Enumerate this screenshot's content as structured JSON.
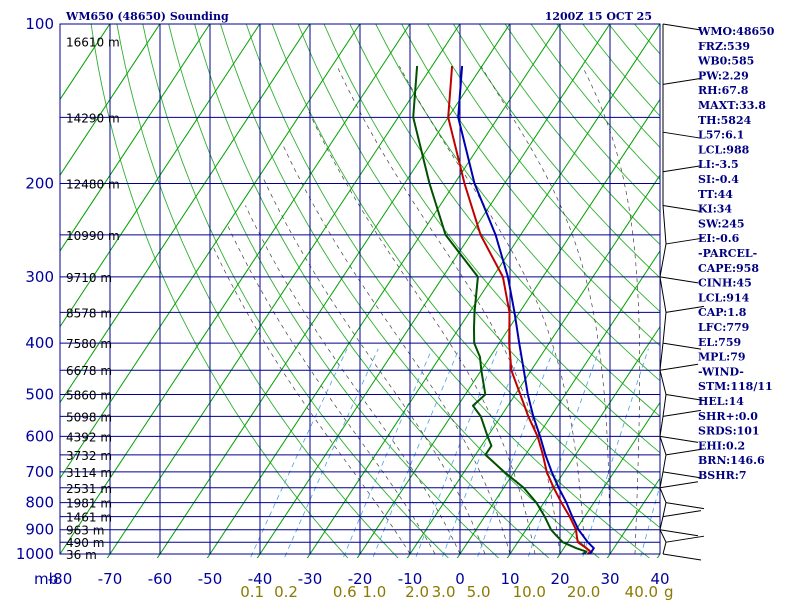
{
  "header": {
    "title": "WM650 (48650) Sounding",
    "datetime": "1200Z 15 OCT 25"
  },
  "chart_data": {
    "type": "skew-t",
    "pressure_axis": {
      "range": [
        1000,
        100
      ],
      "ticks": [
        100,
        200,
        300,
        400,
        500,
        600,
        700,
        800,
        900,
        1000
      ],
      "unit_label": "mb"
    },
    "temperature_axis": {
      "range": [
        -80,
        40
      ],
      "ticks": [
        -80,
        -70,
        -60,
        -50,
        -40,
        -30,
        -20,
        -10,
        0,
        10,
        20,
        30,
        40
      ]
    },
    "mixing_ratio_axis": {
      "ticks": [
        "0.1",
        "0.2",
        "0.6",
        "1.0",
        "2.0",
        "3.0",
        "5.0",
        "10.0",
        "20.0",
        "40.0"
      ],
      "unit_label": "g"
    },
    "height_labels": [
      {
        "p": 108,
        "label": "16610 m"
      },
      {
        "p": 150,
        "label": "14290 m"
      },
      {
        "p": 200,
        "label": "12480 m"
      },
      {
        "p": 250,
        "label": "10990 m"
      },
      {
        "p": 300,
        "label": "9710 m"
      },
      {
        "p": 350,
        "label": "8578 m"
      },
      {
        "p": 400,
        "label": "7580 m"
      },
      {
        "p": 450,
        "label": "6678 m"
      },
      {
        "p": 500,
        "label": "5860 m"
      },
      {
        "p": 550,
        "label": "5098 m"
      },
      {
        "p": 600,
        "label": "4392 m"
      },
      {
        "p": 650,
        "label": "3732 m"
      },
      {
        "p": 700,
        "label": "3114 m"
      },
      {
        "p": 750,
        "label": "2531 m"
      },
      {
        "p": 800,
        "label": "1981 m"
      },
      {
        "p": 850,
        "label": "1461 m"
      },
      {
        "p": 900,
        "label": "963 m"
      },
      {
        "p": 950,
        "label": "490 m"
      },
      {
        "p": 1000,
        "label": "36 m"
      }
    ],
    "series": [
      {
        "name": "Temperature",
        "color": "#c00000",
        "points": [
          [
            1000,
            25.5
          ],
          [
            990,
            25.8
          ],
          [
            975,
            24.5
          ],
          [
            950,
            22
          ],
          [
            925,
            21
          ],
          [
            900,
            20
          ],
          [
            850,
            17
          ],
          [
            800,
            13.5
          ],
          [
            750,
            10
          ],
          [
            700,
            6.5
          ],
          [
            650,
            3.5
          ],
          [
            600,
            0
          ],
          [
            550,
            -4.5
          ],
          [
            500,
            -9
          ],
          [
            450,
            -14
          ],
          [
            400,
            -18
          ],
          [
            350,
            -22
          ],
          [
            300,
            -28
          ],
          [
            250,
            -38
          ],
          [
            200,
            -48
          ],
          [
            150,
            -60
          ],
          [
            120,
            -66
          ]
        ]
      },
      {
        "name": "Dewpoint",
        "color": "#005000",
        "points": [
          [
            1000,
            24.5
          ],
          [
            990,
            25
          ],
          [
            975,
            22.5
          ],
          [
            950,
            19
          ],
          [
            925,
            17
          ],
          [
            900,
            15
          ],
          [
            850,
            12
          ],
          [
            800,
            8.5
          ],
          [
            750,
            4
          ],
          [
            700,
            -2
          ],
          [
            650,
            -8
          ],
          [
            625,
            -8
          ],
          [
            600,
            -10
          ],
          [
            550,
            -14
          ],
          [
            525,
            -17
          ],
          [
            500,
            -16
          ],
          [
            450,
            -20
          ],
          [
            425,
            -22
          ],
          [
            400,
            -25
          ],
          [
            375,
            -27
          ],
          [
            350,
            -29
          ],
          [
            300,
            -33
          ],
          [
            250,
            -45
          ],
          [
            200,
            -55
          ],
          [
            150,
            -67
          ],
          [
            120,
            -73
          ]
        ]
      },
      {
        "name": "Parcel",
        "color": "#0000b0",
        "points": [
          [
            1000,
            26
          ],
          [
            975,
            26
          ],
          [
            950,
            24
          ],
          [
            914,
            21.5
          ],
          [
            900,
            20.5
          ],
          [
            850,
            17.5
          ],
          [
            800,
            14.5
          ],
          [
            750,
            11
          ],
          [
            700,
            7.5
          ],
          [
            650,
            4
          ],
          [
            600,
            0.5
          ],
          [
            550,
            -3.5
          ],
          [
            500,
            -7.5
          ],
          [
            450,
            -11.5
          ],
          [
            400,
            -16
          ],
          [
            350,
            -21
          ],
          [
            300,
            -27
          ],
          [
            250,
            -35
          ],
          [
            200,
            -46
          ],
          [
            150,
            -58
          ],
          [
            120,
            -64
          ]
        ]
      }
    ],
    "wind_barbs_p": [
      100,
      130,
      160,
      190,
      220,
      260,
      300,
      350,
      400,
      450,
      500,
      550,
      600,
      650,
      700,
      750,
      800,
      850,
      900,
      950,
      1000
    ],
    "indices": [
      "WMO:48650",
      "FRZ:539",
      "WB0:585",
      "PW:2.29",
      "RH:67.8",
      "MAXT:33.8",
      "TH:5824",
      "L57:6.1",
      "LCL:988",
      "LI:-3.5",
      "SI:-0.4",
      "TT:44",
      "KI:34",
      "SW:245",
      "EI:-0.6",
      "-PARCEL-",
      "CAPE:958",
      "CINH:45",
      "LCL:914",
      "CAP:1.8",
      "LFC:779",
      "EL:759",
      "MPL:79",
      "-WIND-",
      "STM:118/11",
      "HEL:14",
      "SHR+:0.0",
      "SRDS:101",
      "EHI:0.2",
      "BRN:146.6",
      "BSHR:7"
    ]
  }
}
